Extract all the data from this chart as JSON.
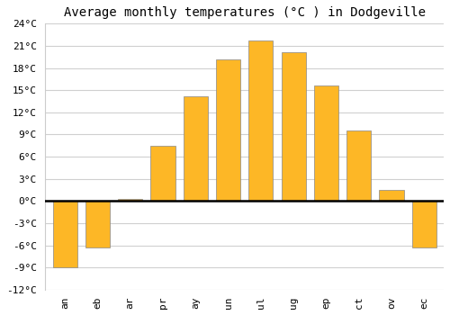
{
  "title": "Average monthly temperatures (°C ) in Dodgeville",
  "months": [
    "an",
    "eb",
    "ar",
    "pr",
    "ay",
    "un",
    "ul",
    "ug",
    "ep",
    "ct",
    "ov",
    "ec"
  ],
  "values": [
    -9.0,
    -6.3,
    0.3,
    7.5,
    14.2,
    19.2,
    21.7,
    20.1,
    15.6,
    9.6,
    1.5,
    -6.3
  ],
  "bar_color": "#FDB726",
  "bar_edge_color": "#888888",
  "ylim": [
    -12,
    24
  ],
  "yticks": [
    -12,
    -9,
    -6,
    -3,
    0,
    3,
    6,
    9,
    12,
    15,
    18,
    21,
    24
  ],
  "ytick_labels": [
    "-12°C",
    "-9°C",
    "-6°C",
    "-3°C",
    "0°C",
    "3°C",
    "6°C",
    "9°C",
    "12°C",
    "15°C",
    "18°C",
    "21°C",
    "24°C"
  ],
  "background_color": "#ffffff",
  "grid_color": "#d0d0d0",
  "title_fontsize": 10,
  "tick_fontsize": 8,
  "bar_width": 0.75
}
